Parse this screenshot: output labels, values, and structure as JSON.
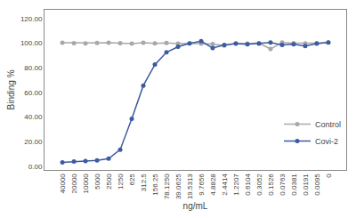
{
  "chart_data": {
    "type": "line",
    "xlabel": "ng/mL",
    "ylabel": "Binding %",
    "categories": [
      "40000",
      "20000",
      "10000",
      "5000",
      "2500",
      "1250",
      "625",
      "312.5",
      "156.25",
      "78.1250",
      "39.0625",
      "19.5313",
      "9.7656",
      "4.8828",
      "2.4414",
      "1.2207",
      "0.6104",
      "0.3052",
      "0.1526",
      "0.0763",
      "0.0381",
      "0.0191",
      "0.0095",
      "0"
    ],
    "series": [
      {
        "name": "Control",
        "color": "#A8A8A8",
        "marker": "circle",
        "line_style": "solid",
        "values": [
          100.2,
          100.0,
          99.8,
          100.1,
          100.3,
          100.0,
          99.5,
          100.2,
          99.8,
          100.1,
          99.5,
          99.8,
          99.5,
          99.2,
          98.0,
          99.8,
          99.5,
          100.0,
          95.2,
          100.5,
          100.0,
          99.8,
          100.0,
          100.5
        ]
      },
      {
        "name": "Covi-2",
        "color": "#3C5BA0",
        "marker": "circle",
        "line_style": "solid",
        "values": [
          3.2,
          3.8,
          4.2,
          4.8,
          6.2,
          13.5,
          38.5,
          65.5,
          82.5,
          92.5,
          97.0,
          99.8,
          101.5,
          96.0,
          98.5,
          99.5,
          99.0,
          99.5,
          100.5,
          98.5,
          99.0,
          97.5,
          99.5,
          100.5
        ]
      }
    ],
    "ylim": [
      -3,
      127
    ],
    "yticks": [
      {
        "value": 0.0,
        "label": "0.00"
      },
      {
        "value": 20.0,
        "label": "20.00"
      },
      {
        "value": 40.0,
        "label": "40.00"
      },
      {
        "value": 60.0,
        "label": "60.00"
      },
      {
        "value": 80.0,
        "label": "80.00"
      },
      {
        "value": 100.0,
        "label": "100.00"
      },
      {
        "value": 120.0,
        "label": "120.00"
      }
    ],
    "grid": false,
    "legend": "lower right"
  }
}
